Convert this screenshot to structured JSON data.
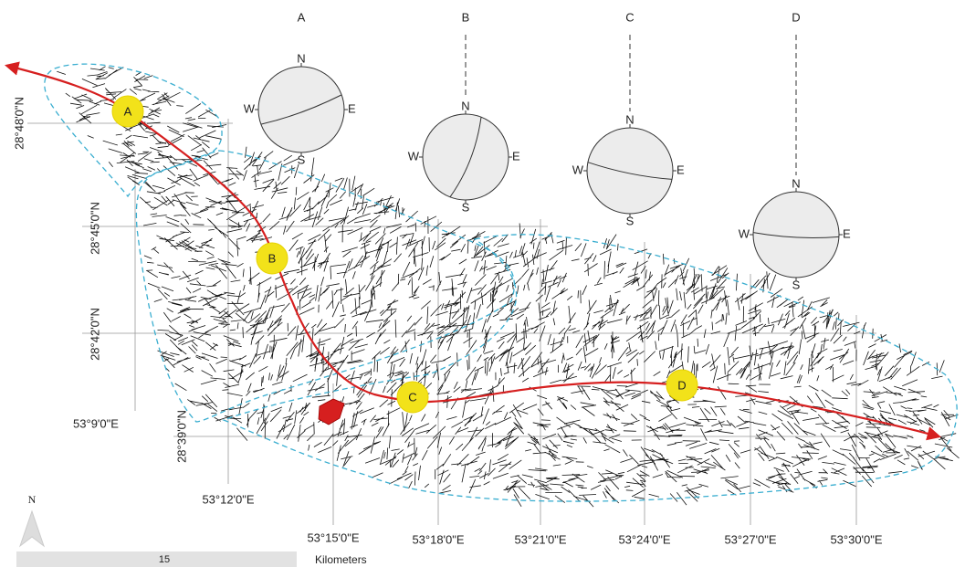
{
  "stations": [
    "A",
    "B",
    "C",
    "D"
  ],
  "stereonets": [
    {
      "title": "A",
      "north": "N",
      "south": "S",
      "east": "E",
      "west": "W"
    },
    {
      "title": "B",
      "north": "N",
      "south": "S",
      "east": "E",
      "west": "W"
    },
    {
      "title": "C",
      "north": "N",
      "south": "S",
      "east": "E",
      "west": "W"
    },
    {
      "title": "D",
      "north": "N",
      "south": "S",
      "east": "E",
      "west": "W"
    }
  ],
  "latitude_labels": [
    "28°48'0\"N",
    "28°45'0\"N",
    "28°42'0\"N",
    "28°39'0\"N"
  ],
  "longitude_labels": [
    "53°9'0\"E",
    "53°12'0\"E",
    "53°15'0\"E",
    "53°18'0\"E",
    "53°21'0\"E",
    "53°24'0\"E",
    "53°27'0\"E",
    "53°30'0\"E"
  ],
  "north_arrow": "N",
  "scale_bar": {
    "value": "15",
    "unit": "Kilometers"
  }
}
